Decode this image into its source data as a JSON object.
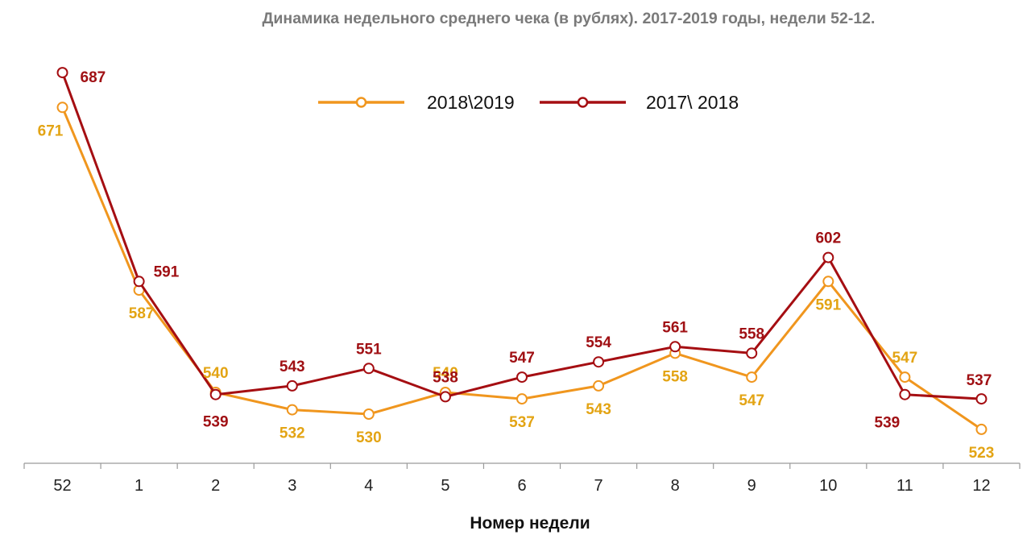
{
  "title": "Динамика недельного среднего чека (в рублях). 2017-2019 годы, недели 52-12.",
  "colors": {
    "s2018": "#f0961e",
    "s2017": "#a50e12",
    "s2018_label": "#e3a414",
    "s2017_label": "#a01014",
    "axis": "#9a9a9a"
  },
  "chart_data": {
    "type": "line",
    "title": "Динамика недельного среднего чека (в рублях). 2017-2019 годы, недели 52-12.",
    "xlabel": "Номер недели",
    "ylabel": "",
    "categories": [
      "52",
      "1",
      "2",
      "3",
      "4",
      "5",
      "6",
      "7",
      "8",
      "9",
      "10",
      "11",
      "12"
    ],
    "series": [
      {
        "name": "2018\\2019",
        "values": [
          671,
          587,
          540,
          532,
          530,
          540,
          537,
          543,
          558,
          547,
          591,
          547,
          523
        ]
      },
      {
        "name": "2017\\ 2018",
        "values": [
          687,
          591,
          539,
          543,
          551,
          538,
          547,
          554,
          561,
          558,
          602,
          539,
          537
        ]
      }
    ],
    "legend": "top-center",
    "grid": false
  }
}
